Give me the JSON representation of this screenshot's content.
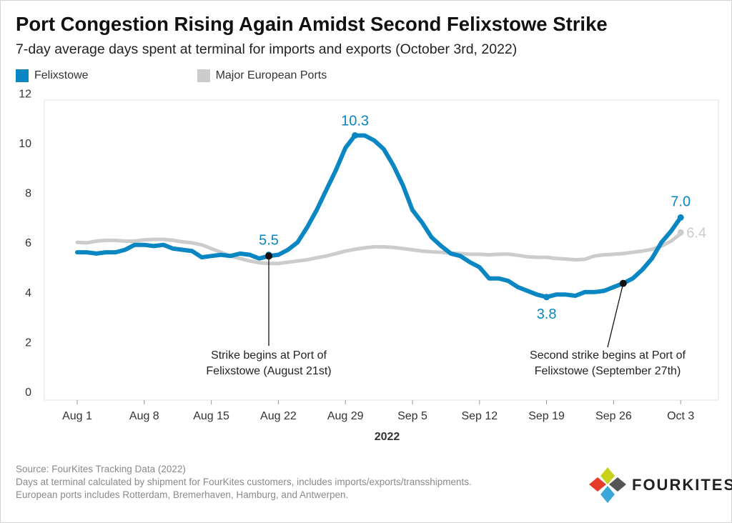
{
  "title": "Port Congestion Rising Again Amidst Second Felixstowe Strike",
  "subtitle": "7-day average days spent at terminal for imports and exports (October 3rd, 2022)",
  "legend": [
    {
      "label": "Felixstowe",
      "color": "#0a86c2"
    },
    {
      "label": "Major European Ports",
      "color": "#cccccc"
    }
  ],
  "chart_data": {
    "type": "line",
    "xlabel": "2022",
    "ylabel": "",
    "x_ticks": [
      "Aug 1",
      "Aug 8",
      "Aug 15",
      "Aug 22",
      "Aug 29",
      "Sep 5",
      "Sep 12",
      "Sep 19",
      "Sep 26",
      "Oct 3"
    ],
    "y_ticks": [
      "0",
      "2",
      "4",
      "6",
      "8",
      "10",
      "12"
    ],
    "ylim": [
      0,
      12
    ],
    "grid": false,
    "legend_position": "top-left",
    "series": [
      {
        "name": "Felixstowe",
        "color": "#0a86c2",
        "x": [
          "Aug 1",
          "Aug 2",
          "Aug 3",
          "Aug 4",
          "Aug 5",
          "Aug 6",
          "Aug 7",
          "Aug 8",
          "Aug 9",
          "Aug 10",
          "Aug 11",
          "Aug 12",
          "Aug 13",
          "Aug 14",
          "Aug 15",
          "Aug 16",
          "Aug 17",
          "Aug 18",
          "Aug 19",
          "Aug 20",
          "Aug 21",
          "Aug 22",
          "Aug 23",
          "Aug 24",
          "Aug 25",
          "Aug 26",
          "Aug 27",
          "Aug 28",
          "Aug 29",
          "Aug 30",
          "Aug 31",
          "Sep 1",
          "Sep 2",
          "Sep 3",
          "Sep 4",
          "Sep 5",
          "Sep 6",
          "Sep 7",
          "Sep 8",
          "Sep 9",
          "Sep 10",
          "Sep 11",
          "Sep 12",
          "Sep 13",
          "Sep 14",
          "Sep 15",
          "Sep 16",
          "Sep 17",
          "Sep 18",
          "Sep 19",
          "Sep 20",
          "Sep 21",
          "Sep 22",
          "Sep 23",
          "Sep 24",
          "Sep 25",
          "Sep 26",
          "Sep 27",
          "Sep 28",
          "Sep 29",
          "Sep 30",
          "Oct 1",
          "Oct 2",
          "Oct 3"
        ],
        "values": [
          5.6,
          5.6,
          5.55,
          5.6,
          5.6,
          5.7,
          5.9,
          5.9,
          5.85,
          5.9,
          5.75,
          5.7,
          5.65,
          5.4,
          5.45,
          5.5,
          5.45,
          5.55,
          5.5,
          5.35,
          5.45,
          5.5,
          5.7,
          6.0,
          6.6,
          7.3,
          8.1,
          8.9,
          9.8,
          10.3,
          10.3,
          10.1,
          9.75,
          9.1,
          8.3,
          7.3,
          6.8,
          6.2,
          5.85,
          5.55,
          5.45,
          5.2,
          5.0,
          4.55,
          4.55,
          4.45,
          4.2,
          4.05,
          3.9,
          3.8,
          3.9,
          3.9,
          3.85,
          4.0,
          4.0,
          4.05,
          4.2,
          4.35,
          4.55,
          4.9,
          5.35,
          6.0,
          6.45,
          7.0
        ]
      },
      {
        "name": "Major European Ports",
        "color": "#cccccc",
        "x": [
          "Aug 1",
          "Aug 2",
          "Aug 3",
          "Aug 4",
          "Aug 5",
          "Aug 6",
          "Aug 7",
          "Aug 8",
          "Aug 9",
          "Aug 10",
          "Aug 11",
          "Aug 12",
          "Aug 13",
          "Aug 14",
          "Aug 15",
          "Aug 16",
          "Aug 17",
          "Aug 18",
          "Aug 19",
          "Aug 20",
          "Aug 21",
          "Aug 22",
          "Aug 23",
          "Aug 24",
          "Aug 25",
          "Aug 26",
          "Aug 27",
          "Aug 28",
          "Aug 29",
          "Aug 30",
          "Aug 31",
          "Sep 1",
          "Sep 2",
          "Sep 3",
          "Sep 4",
          "Sep 5",
          "Sep 6",
          "Sep 7",
          "Sep 8",
          "Sep 9",
          "Sep 10",
          "Sep 11",
          "Sep 12",
          "Sep 13",
          "Sep 14",
          "Sep 15",
          "Sep 16",
          "Sep 17",
          "Sep 18",
          "Sep 19",
          "Sep 20",
          "Sep 21",
          "Sep 22",
          "Sep 23",
          "Sep 24",
          "Sep 25",
          "Sep 26",
          "Sep 27",
          "Sep 28",
          "Sep 29",
          "Sep 30",
          "Oct 1",
          "Oct 2",
          "Oct 3"
        ],
        "values": [
          6.0,
          5.98,
          6.05,
          6.08,
          6.08,
          6.05,
          6.05,
          6.1,
          6.12,
          6.12,
          6.08,
          6.02,
          5.98,
          5.9,
          5.75,
          5.6,
          5.45,
          5.35,
          5.25,
          5.18,
          5.15,
          5.15,
          5.2,
          5.25,
          5.3,
          5.38,
          5.45,
          5.55,
          5.65,
          5.72,
          5.78,
          5.82,
          5.82,
          5.8,
          5.75,
          5.7,
          5.65,
          5.62,
          5.6,
          5.57,
          5.55,
          5.52,
          5.52,
          5.5,
          5.52,
          5.53,
          5.48,
          5.42,
          5.4,
          5.4,
          5.35,
          5.33,
          5.3,
          5.32,
          5.45,
          5.5,
          5.52,
          5.55,
          5.6,
          5.65,
          5.72,
          5.85,
          6.05,
          6.35
        ]
      }
    ],
    "data_labels": [
      {
        "series": "Felixstowe",
        "x": "Aug 21",
        "y": 5.5,
        "text": "5.5"
      },
      {
        "series": "Felixstowe",
        "x": "Aug 30",
        "y": 10.3,
        "text": "10.3"
      },
      {
        "series": "Felixstowe",
        "x": "Sep 19",
        "y": 3.8,
        "text": "3.8"
      },
      {
        "series": "Felixstowe",
        "x": "Oct 3",
        "y": 7.0,
        "text": "7.0"
      },
      {
        "series": "Major European Ports",
        "x": "Oct 3",
        "y": 6.4,
        "text": "6.4"
      }
    ],
    "annotations": [
      {
        "x": "Aug 21",
        "y": 5.45,
        "text": [
          "Strike begins at Port of",
          "Felixstowe (August 21st)"
        ]
      },
      {
        "x": "Sep 27",
        "y": 4.35,
        "text": [
          "Second strike begins at Port of",
          "Felixstowe (September 27th)"
        ]
      }
    ]
  },
  "footer": {
    "source": "Source: FourKites Tracking Data (2022)",
    "note1": "Days at terminal calculated by shipment for FourKites customers, includes imports/exports/transshipments.",
    "note2": "European ports includes Rotterdam, Bremerhaven, Hamburg, and Antwerpen."
  },
  "logo": {
    "text": "FOURKITES",
    "colors": [
      "#e63a2b",
      "#c9d21a",
      "#3aa7d8",
      "#555555"
    ]
  }
}
